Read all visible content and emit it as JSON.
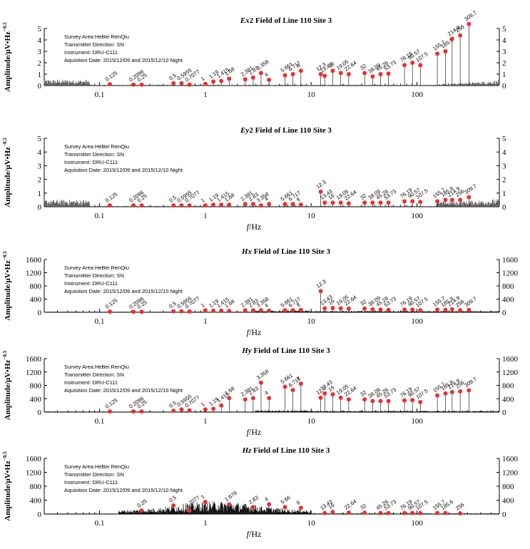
{
  "figure": {
    "y_axis_label_amp": "Amplitude/μV•Hz",
    "y_axis_label_exp": "−0.5",
    "x_axis_label_italic": "f",
    "x_axis_label_unit": "/Hz",
    "info_lines": [
      "Survey Area:HeBei RenQiu",
      "Transmitter Direction: SN",
      "Instrument: DRU-C111",
      "Aquisition Date: 2015/12/09 and 2015/12/10 Night"
    ],
    "x_tick_labels": [
      "0.1",
      "1",
      "10",
      "100"
    ],
    "marker_color": "#e8312f",
    "spectrum_color": "#000000"
  },
  "chart_data": [
    {
      "type": "line",
      "title_italic": "Ex",
      "title_rest": "2 Field of Line 110 Site 3",
      "xscale": "log",
      "xlim": [
        0.03,
        600
      ],
      "ylim": [
        0,
        5
      ],
      "yticks": [
        0,
        1,
        2,
        3,
        4,
        5
      ],
      "series": [
        {
          "name": "",
          "points": [
            {
              "f": 0.125,
              "label": "0.125",
              "a": 0.12
            },
            {
              "f": 0.2096,
              "label": "0.2096",
              "a": 0.08
            },
            {
              "f": 0.25,
              "label": "0.25",
              "a": 0.08
            },
            {
              "f": 0.5,
              "label": "0.5",
              "a": 0.2
            },
            {
              "f": 0.5955,
              "label": "0.5955",
              "a": 0.2
            },
            {
              "f": 0.7077,
              "label": "0.7077",
              "a": 0.08
            },
            {
              "f": 1,
              "label": "1",
              "a": 0.15
            },
            {
              "f": 1.19,
              "label": "1.19",
              "a": 0.35
            },
            {
              "f": 1.415,
              "label": "1.415",
              "a": 0.4
            },
            {
              "f": 1.68,
              "label": "1.68",
              "a": 0.6
            },
            {
              "f": 2.381,
              "label": "2.381",
              "a": 0.55
            },
            {
              "f": 2.83,
              "label": "2.83",
              "a": 0.7
            },
            {
              "f": 3.358,
              "label": "3.358",
              "a": 1.1
            },
            {
              "f": 4,
              "label": "4",
              "a": 0.5
            },
            {
              "f": 5.661,
              "label": "5.661",
              "a": 0.9
            },
            {
              "f": 6.717,
              "label": "6.717",
              "a": 1.0
            },
            {
              "f": 8,
              "label": "8",
              "a": 1.3
            },
            {
              "f": 13.43,
              "label": "13.43",
              "a": 0.85
            },
            {
              "f": 12.3,
              "label": "12.3",
              "a": 1.0
            },
            {
              "f": 16,
              "label": "16",
              "a": 1.3
            },
            {
              "f": 19.05,
              "label": "19.05",
              "a": 1.1
            },
            {
              "f": 22.64,
              "label": "22.64",
              "a": 1.0
            },
            {
              "f": 32,
              "label": "32",
              "a": 1.1
            },
            {
              "f": 38.09,
              "label": "38.09",
              "a": 0.8
            },
            {
              "f": 45.26,
              "label": "45.26",
              "a": 1.0
            },
            {
              "f": 53.73,
              "label": "53.73",
              "a": 1.05
            },
            {
              "f": 76.19,
              "label": "76.19",
              "a": 1.8
            },
            {
              "f": 90.57,
              "label": "90.57",
              "a": 2.0
            },
            {
              "f": 107.5,
              "label": "107.5",
              "a": 1.8
            },
            {
              "f": 155.7,
              "label": "155.7",
              "a": 2.8
            },
            {
              "f": 185.9,
              "label": "185.9",
              "a": 3.0
            },
            {
              "f": 214.9,
              "label": "214.9",
              "a": 4.1
            },
            {
              "f": 256,
              "label": "256",
              "a": 4.4
            },
            {
              "f": 309.7,
              "label": "309.7",
              "a": 5.4
            }
          ]
        }
      ]
    },
    {
      "type": "line",
      "title_italic": "Ey",
      "title_rest": "2 Field of Line 110 Site 3",
      "xscale": "log",
      "xlim": [
        0.03,
        600
      ],
      "ylim": [
        0,
        5
      ],
      "yticks": [
        0,
        1,
        2,
        3,
        4,
        5
      ],
      "series": [
        {
          "name": "",
          "points": [
            {
              "f": 0.125,
              "label": "0.125",
              "a": 0.1
            },
            {
              "f": 0.2096,
              "label": "0.2096",
              "a": 0.1
            },
            {
              "f": 0.25,
              "label": "0.25",
              "a": 0.1
            },
            {
              "f": 0.5,
              "label": "0.5",
              "a": 0.1
            },
            {
              "f": 0.5955,
              "label": "0.5955",
              "a": 0.1
            },
            {
              "f": 0.7077,
              "label": "0.7077",
              "a": 0.1
            },
            {
              "f": 1,
              "label": "1",
              "a": 0.1
            },
            {
              "f": 1.19,
              "label": "1.19",
              "a": 0.15
            },
            {
              "f": 1.415,
              "label": "1.415",
              "a": 0.15
            },
            {
              "f": 1.68,
              "label": "1.68",
              "a": 0.15
            },
            {
              "f": 2.381,
              "label": "2.381",
              "a": 0.2
            },
            {
              "f": 2.83,
              "label": "2.83",
              "a": 0.2
            },
            {
              "f": 3.358,
              "label": "3.358",
              "a": 0.1
            },
            {
              "f": 4,
              "label": "4",
              "a": 0.2
            },
            {
              "f": 5.661,
              "label": "5.661",
              "a": 0.2
            },
            {
              "f": 6.717,
              "label": "6.717",
              "a": 0.2
            },
            {
              "f": 8,
              "label": "8",
              "a": 0.15
            },
            {
              "f": 12.3,
              "label": "12.3",
              "a": 1.1
            },
            {
              "f": 13.43,
              "label": "13.43",
              "a": 0.3
            },
            {
              "f": 16,
              "label": "16",
              "a": 0.3
            },
            {
              "f": 19.05,
              "label": "19.05",
              "a": 0.3
            },
            {
              "f": 22.64,
              "label": "22.64",
              "a": 0.25
            },
            {
              "f": 32,
              "label": "32",
              "a": 0.3
            },
            {
              "f": 38.09,
              "label": "38.09",
              "a": 0.3
            },
            {
              "f": 45.26,
              "label": "45.26",
              "a": 0.3
            },
            {
              "f": 53.73,
              "label": "53.73",
              "a": 0.3
            },
            {
              "f": 76.19,
              "label": "76.19",
              "a": 0.4
            },
            {
              "f": 90.57,
              "label": "90.57",
              "a": 0.4
            },
            {
              "f": 107.5,
              "label": "107.5",
              "a": 0.35
            },
            {
              "f": 155.7,
              "label": "155.7",
              "a": 0.4
            },
            {
              "f": 185.9,
              "label": "185.9",
              "a": 0.5
            },
            {
              "f": 214.9,
              "label": "214.9",
              "a": 0.5
            },
            {
              "f": 256,
              "label": "256",
              "a": 0.5
            },
            {
              "f": 309.7,
              "label": "309.7",
              "a": 0.7
            }
          ]
        }
      ]
    },
    {
      "type": "line",
      "title_italic": "Hx",
      "title_rest": " Field of Line 110 Site 3",
      "xscale": "log",
      "xlim": [
        0.03,
        600
      ],
      "ylim": [
        0,
        1600
      ],
      "yticks": [
        0,
        400,
        800,
        1200,
        1600
      ],
      "series": [
        {
          "name": "",
          "points": [
            {
              "f": 0.125,
              "label": "0.125",
              "a": 20
            },
            {
              "f": 0.2096,
              "label": "0.2096",
              "a": 15
            },
            {
              "f": 0.25,
              "label": "0.25",
              "a": 15
            },
            {
              "f": 0.5,
              "label": "0.5",
              "a": 30
            },
            {
              "f": 0.5955,
              "label": "0.5955",
              "a": 30
            },
            {
              "f": 0.7077,
              "label": "0.7077",
              "a": 25
            },
            {
              "f": 1,
              "label": "1",
              "a": 60
            },
            {
              "f": 1.19,
              "label": "1.19",
              "a": 50
            },
            {
              "f": 1.415,
              "label": "1.415",
              "a": 50
            },
            {
              "f": 1.68,
              "label": "1.68",
              "a": 40
            },
            {
              "f": 2.381,
              "label": "2.381",
              "a": 60
            },
            {
              "f": 2.83,
              "label": "2.83",
              "a": 60
            },
            {
              "f": 3.358,
              "label": "3.358",
              "a": 60
            },
            {
              "f": 4,
              "label": "4",
              "a": 50
            },
            {
              "f": 5.661,
              "label": "5.661",
              "a": 60
            },
            {
              "f": 6.717,
              "label": "6.717",
              "a": 60
            },
            {
              "f": 8,
              "label": "8",
              "a": 70
            },
            {
              "f": 12.3,
              "label": "12.3",
              "a": 640
            },
            {
              "f": 13.43,
              "label": "13.43",
              "a": 120
            },
            {
              "f": 16,
              "label": "16",
              "a": 130
            },
            {
              "f": 19.05,
              "label": "19.05",
              "a": 120
            },
            {
              "f": 22.64,
              "label": "22.64",
              "a": 110
            },
            {
              "f": 32,
              "label": "32",
              "a": 110
            },
            {
              "f": 38.09,
              "label": "38.09",
              "a": 90
            },
            {
              "f": 45.26,
              "label": "45.26",
              "a": 80
            },
            {
              "f": 53.73,
              "label": "53.73",
              "a": 70
            },
            {
              "f": 76.19,
              "label": "76.19",
              "a": 80
            },
            {
              "f": 90.57,
              "label": "90.57",
              "a": 80
            },
            {
              "f": 107.5,
              "label": "107.5",
              "a": 60
            },
            {
              "f": 155.7,
              "label": "155.7",
              "a": 80
            },
            {
              "f": 185.9,
              "label": "185.9",
              "a": 70
            },
            {
              "f": 214.9,
              "label": "214.9",
              "a": 90
            },
            {
              "f": 256,
              "label": "256",
              "a": 60
            },
            {
              "f": 309.7,
              "label": "309.7",
              "a": 70
            }
          ]
        }
      ]
    },
    {
      "type": "line",
      "title_italic": "Hy",
      "title_rest": " Field of Line 110 Site 3",
      "xscale": "log",
      "xlim": [
        0.03,
        600
      ],
      "ylim": [
        0,
        1600
      ],
      "yticks": [
        0,
        400,
        800,
        1200,
        1600
      ],
      "series": [
        {
          "name": "",
          "points": [
            {
              "f": 0.125,
              "label": "0.125",
              "a": 20
            },
            {
              "f": 0.2096,
              "label": "0.2096",
              "a": 20
            },
            {
              "f": 0.25,
              "label": "0.25",
              "a": 20
            },
            {
              "f": 0.5,
              "label": "0.5",
              "a": 40
            },
            {
              "f": 0.5955,
              "label": "0.5955",
              "a": 80
            },
            {
              "f": 0.7077,
              "label": "0.7077",
              "a": 50
            },
            {
              "f": 1,
              "label": "1",
              "a": 80
            },
            {
              "f": 1.19,
              "label": "1.19",
              "a": 100
            },
            {
              "f": 1.415,
              "label": "1.415",
              "a": 200
            },
            {
              "f": 1.68,
              "label": "1.68",
              "a": 420
            },
            {
              "f": 2.381,
              "label": "2.381",
              "a": 380
            },
            {
              "f": 2.83,
              "label": "2.83",
              "a": 420
            },
            {
              "f": 3.358,
              "label": "3.358",
              "a": 880
            },
            {
              "f": 4,
              "label": "4",
              "a": 420
            },
            {
              "f": 5.661,
              "label": "5.661",
              "a": 760
            },
            {
              "f": 6.717,
              "label": "6.717",
              "a": 660
            },
            {
              "f": 8,
              "label": "8",
              "a": 850
            },
            {
              "f": 12.3,
              "label": "12.3",
              "a": 430
            },
            {
              "f": 13.43,
              "label": "13.43",
              "a": 560
            },
            {
              "f": 16,
              "label": "16",
              "a": 530
            },
            {
              "f": 19.05,
              "label": "19.05",
              "a": 430
            },
            {
              "f": 22.64,
              "label": "22.64",
              "a": 380
            },
            {
              "f": 32,
              "label": "32",
              "a": 380
            },
            {
              "f": 38.09,
              "label": "38.09",
              "a": 330
            },
            {
              "f": 45.26,
              "label": "45.26",
              "a": 330
            },
            {
              "f": 53.73,
              "label": "53.73",
              "a": 330
            },
            {
              "f": 76.19,
              "label": "76.19",
              "a": 350
            },
            {
              "f": 90.57,
              "label": "90.57",
              "a": 360
            },
            {
              "f": 107.5,
              "label": "107.5",
              "a": 300
            },
            {
              "f": 155.7,
              "label": "155.7",
              "a": 500
            },
            {
              "f": 185.9,
              "label": "185.9",
              "a": 560
            },
            {
              "f": 214.9,
              "label": "214.9",
              "a": 600
            },
            {
              "f": 256,
              "label": "256",
              "a": 620
            },
            {
              "f": 309.7,
              "label": "309.7",
              "a": 650
            }
          ]
        }
      ]
    },
    {
      "type": "line",
      "title_italic": "Hz",
      "title_rest": " Field of Line 110 Site 3",
      "xscale": "log",
      "xlim": [
        0.03,
        600
      ],
      "ylim": [
        0,
        1600
      ],
      "yticks": [
        0,
        400,
        800,
        1200,
        1600
      ],
      "series": [
        {
          "name": "",
          "points": [
            {
              "f": 0.25,
              "label": "0.25",
              "a": 100
            },
            {
              "f": 0.5,
              "label": "0.5",
              "a": 250
            },
            {
              "f": 0.7077,
              "label": "0.7077",
              "a": 100
            },
            {
              "f": 1,
              "label": "1",
              "a": 350
            },
            {
              "f": 1.679,
              "label": "1.679",
              "a": 280
            },
            {
              "f": 2.83,
              "label": "2.83",
              "a": 200
            },
            {
              "f": 4,
              "label": "4",
              "a": 280
            },
            {
              "f": 5.66,
              "label": "5.66",
              "a": 200
            },
            {
              "f": 8,
              "label": "8",
              "a": 180
            },
            {
              "f": 13.43,
              "label": "13.43",
              "a": 30
            },
            {
              "f": 16,
              "label": "16",
              "a": 60
            },
            {
              "f": 22.64,
              "label": "22.64",
              "a": 40
            },
            {
              "f": 32,
              "label": "32",
              "a": 40
            },
            {
              "f": 45.26,
              "label": "45.26",
              "a": 30
            },
            {
              "f": 53.73,
              "label": "53.73",
              "a": 30
            },
            {
              "f": 76.19,
              "label": "76.19",
              "a": 30
            },
            {
              "f": 90.57,
              "label": "90.57",
              "a": 30
            },
            {
              "f": 107.5,
              "label": "107.5",
              "a": 30
            },
            {
              "f": 155.7,
              "label": "155.7",
              "a": 30
            },
            {
              "f": 185.6,
              "label": "185.6",
              "a": 30
            },
            {
              "f": 256,
              "label": "256",
              "a": 20
            }
          ]
        }
      ]
    }
  ]
}
